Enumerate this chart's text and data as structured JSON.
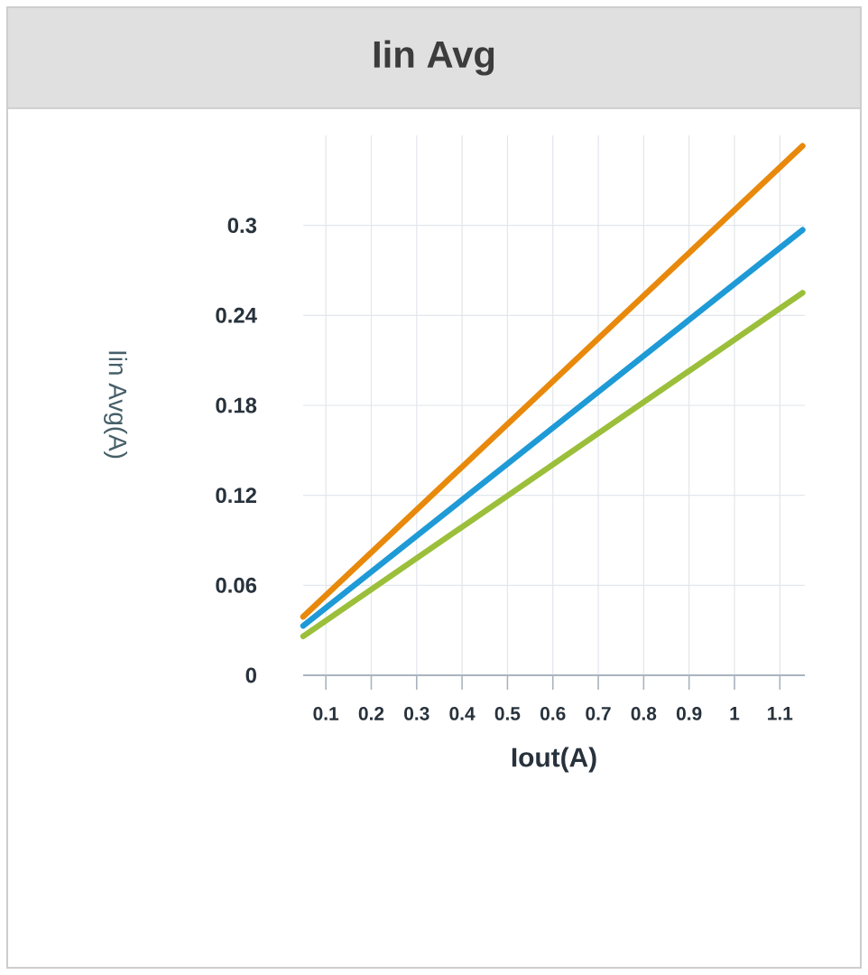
{
  "chart_data": {
    "type": "line",
    "title": "Iin Avg",
    "xlabel": "Iout(A)",
    "ylabel": "Iin Avg(A)",
    "x": [
      0.05,
      1.15
    ],
    "series": [
      {
        "color": "#e8890c",
        "values": [
          0.039,
          0.353
        ]
      },
      {
        "color": "#1e9ad6",
        "values": [
          0.033,
          0.297
        ]
      },
      {
        "color": "#9bbf3a",
        "values": [
          0.026,
          0.255
        ]
      }
    ],
    "xlim": [
      0.05,
      1.155
    ],
    "ylim": [
      0,
      0.36
    ],
    "xticks": [
      0.1,
      0.2,
      0.3,
      0.4,
      0.5,
      0.6,
      0.7,
      0.8,
      0.9,
      1,
      1.1
    ],
    "yticks": [
      0,
      0.06,
      0.12,
      0.18,
      0.24,
      0.3
    ],
    "grid": true
  }
}
